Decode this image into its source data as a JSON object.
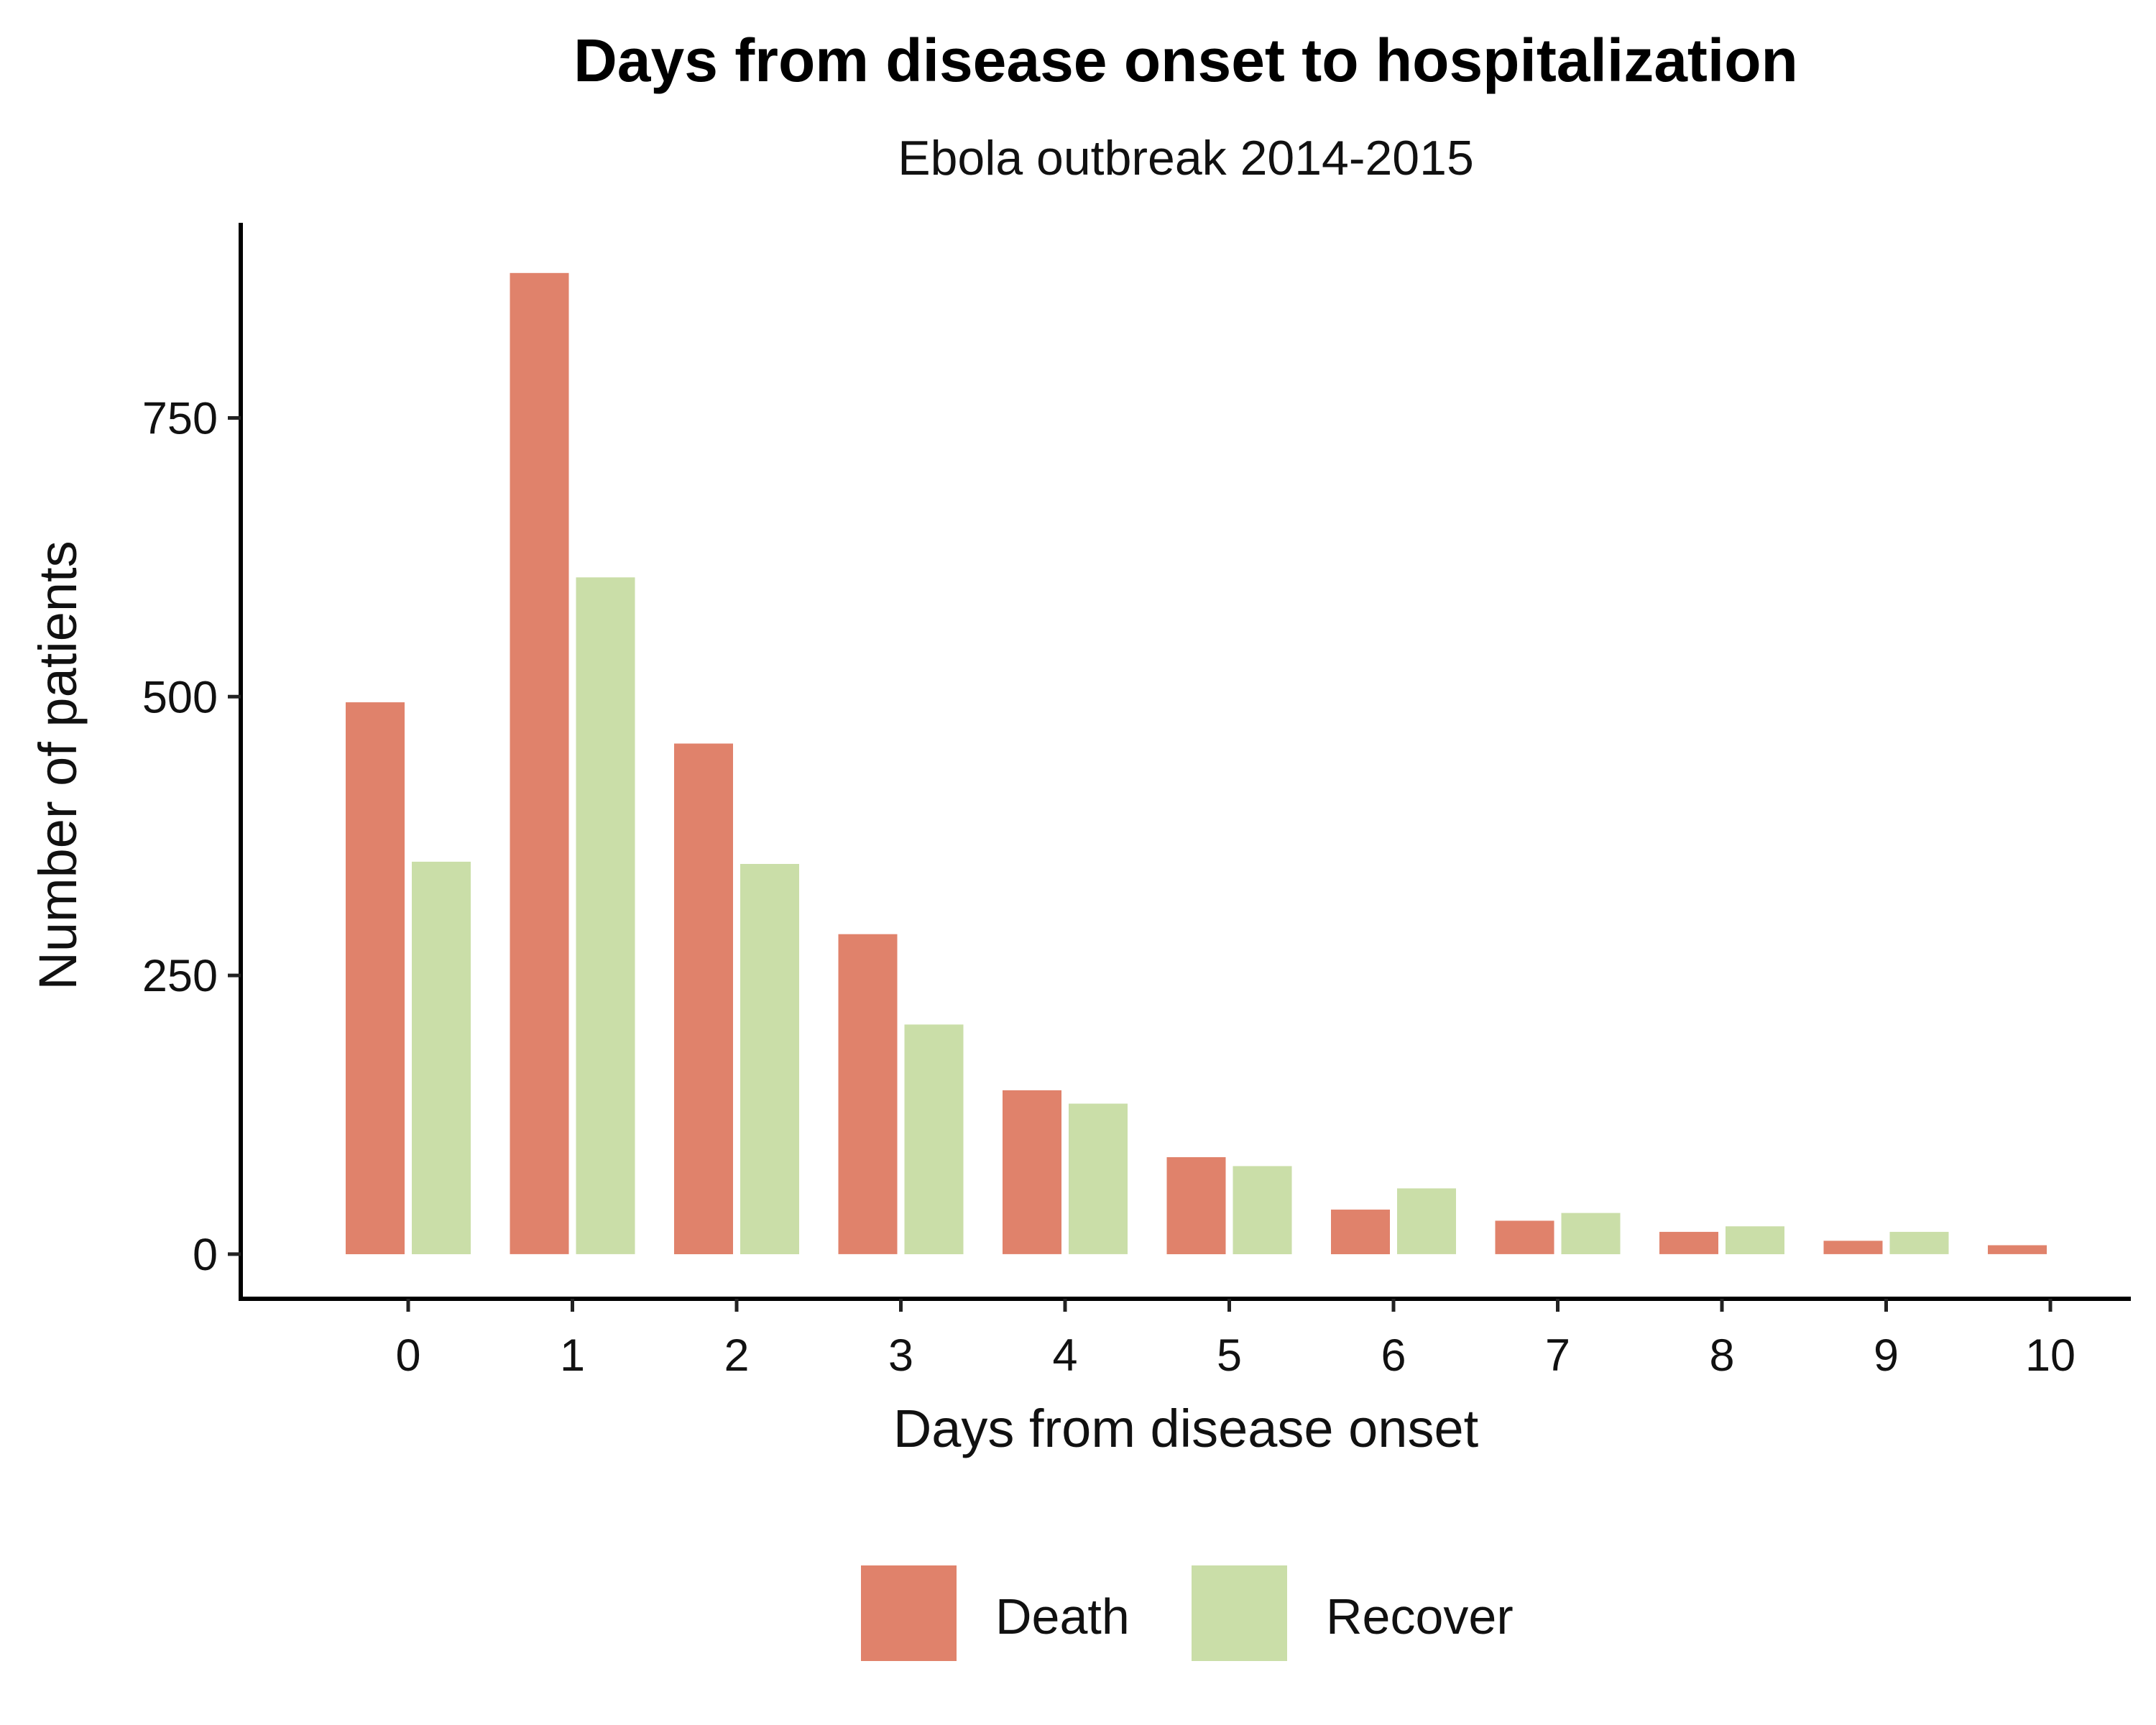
{
  "chart_data": {
    "type": "bar",
    "title": "Days from disease onset to hospitalization",
    "subtitle": "Ebola outbreak 2014-2015",
    "xlabel": "Days from disease onset",
    "ylabel": "Number of patients",
    "categories": [
      "0",
      "1",
      "2",
      "3",
      "4",
      "5",
      "6",
      "7",
      "8",
      "9",
      "10"
    ],
    "series": [
      {
        "name": "Death",
        "color": "#E0826B",
        "values": [
          495,
          880,
          458,
          287,
          147,
          87,
          40,
          30,
          20,
          12,
          8
        ]
      },
      {
        "name": "Recover",
        "color": "#CADEA8",
        "values": [
          352,
          607,
          350,
          206,
          135,
          79,
          59,
          37,
          25,
          20,
          null
        ]
      }
    ],
    "ylim": [
      -40,
      925
    ],
    "yticks": [
      0,
      250,
      500,
      750
    ],
    "grid": false,
    "legend_position": "bottom"
  }
}
